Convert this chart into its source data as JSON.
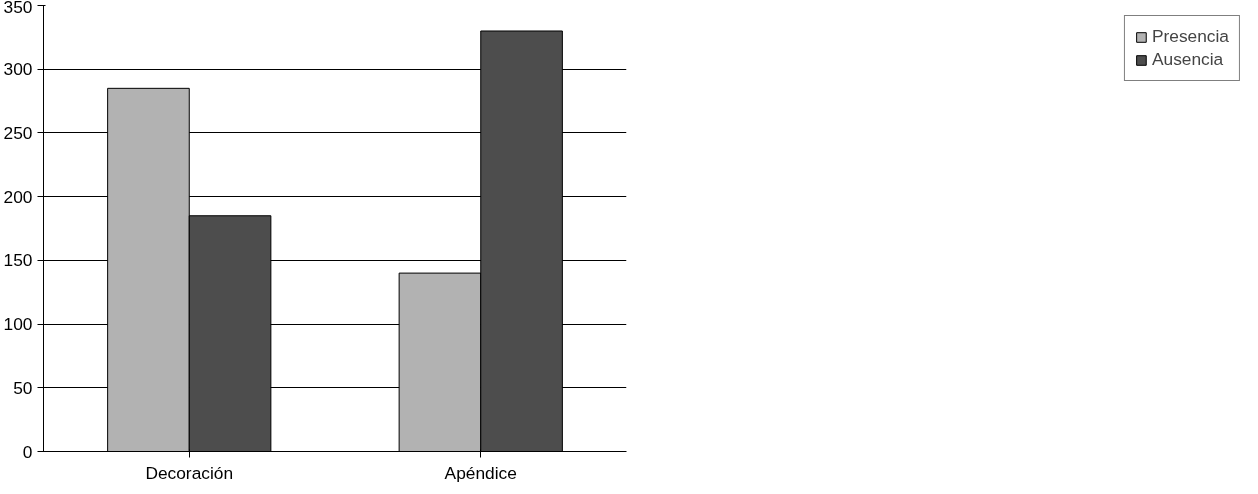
{
  "chart_data": {
    "type": "bar",
    "categories": [
      "Decoración",
      "Apéndice"
    ],
    "series": [
      {
        "name": "Presencia",
        "color": "#b2b2b2",
        "values": [
          285,
          140
        ]
      },
      {
        "name": "Ausencia",
        "color": "#4d4d4d",
        "values": [
          185,
          330
        ]
      }
    ],
    "ylim": [
      0,
      350
    ],
    "yticks": [
      0,
      50,
      100,
      150,
      200,
      250,
      300,
      350
    ],
    "grid": "y",
    "legend": "right"
  }
}
